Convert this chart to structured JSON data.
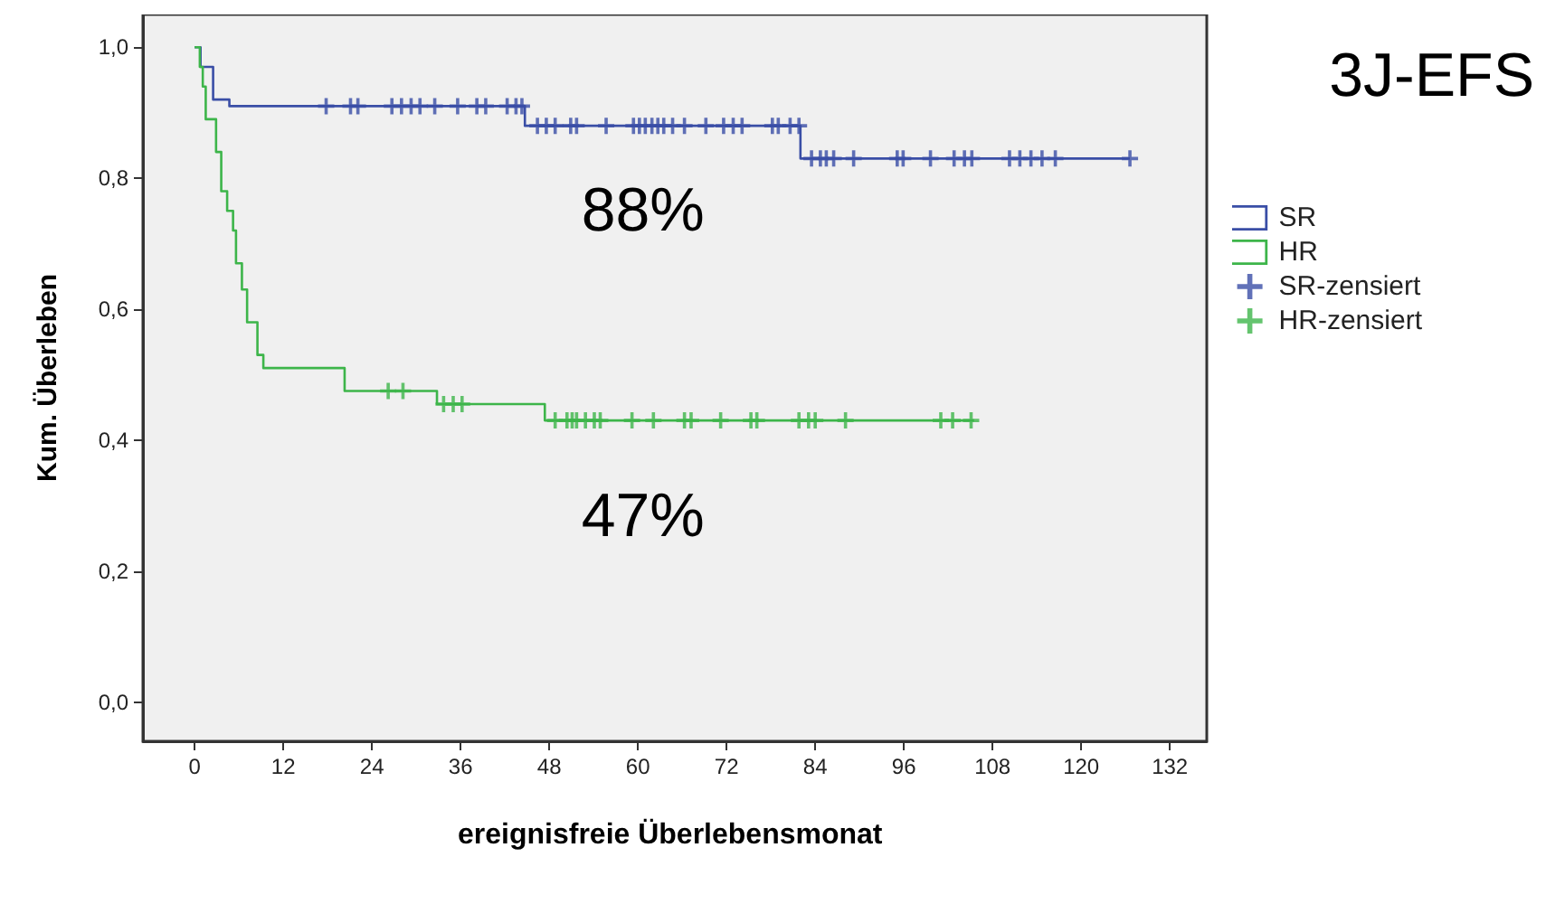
{
  "chart_data": {
    "type": "step",
    "title": "3J-EFS",
    "xlabel": "ereignisfreie Überlebensmonat",
    "ylabel": "Kum. Überleben",
    "xlim": [
      -7,
      137
    ],
    "xticks": [
      0,
      12,
      24,
      36,
      48,
      60,
      72,
      84,
      96,
      108,
      120,
      132
    ],
    "ylim": [
      -0.06,
      1.05
    ],
    "yticks": [
      {
        "value": 0,
        "label": "0,0"
      },
      {
        "value": 0.2,
        "label": "0,2"
      },
      {
        "value": 0.4,
        "label": "0,4"
      },
      {
        "value": 0.6,
        "label": "0,6"
      },
      {
        "value": 0.8,
        "label": "0,8"
      },
      {
        "value": 1,
        "label": "1,0"
      }
    ],
    "grid": false,
    "legend": "right",
    "annotations": [
      "88%",
      "47%"
    ],
    "series": [
      {
        "name": "SR",
        "type": "step",
        "color": "#3a4ea6",
        "x": [
          0,
          0.8,
          2.5,
          4.7,
          44.7,
          82,
          126.6
        ],
        "values": [
          1,
          0.97,
          0.92,
          0.91,
          0.88,
          0.83,
          0.83
        ]
      },
      {
        "name": "HR",
        "type": "step",
        "color": "#3db54a",
        "x": [
          0,
          0.7,
          1.1,
          1.5,
          2.9,
          3.6,
          4.4,
          5.2,
          5.6,
          6.4,
          7.1,
          8.5,
          9.3,
          20.3,
          32.8,
          47.4,
          105.5
        ],
        "values": [
          1,
          0.97,
          0.94,
          0.89,
          0.84,
          0.78,
          0.75,
          0.72,
          0.67,
          0.63,
          0.58,
          0.53,
          0.51,
          0.475,
          0.455,
          0.43,
          0.43
        ]
      },
      {
        "name": "SR-zensiert",
        "type": "scatter",
        "marker": "cross",
        "color": "#3a4ea6",
        "x": [
          17.8,
          21.1,
          22.1,
          26.7,
          28.0,
          29.3,
          30.5,
          32.5,
          35.6,
          38.2,
          39.4,
          42.3,
          43.5,
          44.3,
          46.4,
          47.6,
          48.8,
          50.9,
          51.7,
          55.7,
          59.4,
          60.2,
          61.0,
          61.9,
          62.7,
          63.5,
          64.7,
          66.3,
          69.2,
          71.6,
          72.9,
          74.1,
          78.2,
          79.0,
          80.6,
          81.8,
          83.5,
          84.7,
          85.5,
          86.5,
          89.2,
          95.1,
          95.9,
          99.6,
          102.8,
          104.2,
          105.2,
          110.3,
          111.7,
          113.2,
          114.7,
          116.5,
          126.6
        ],
        "values": [
          0.91,
          0.91,
          0.91,
          0.91,
          0.91,
          0.91,
          0.91,
          0.91,
          0.91,
          0.91,
          0.91,
          0.91,
          0.91,
          0.91,
          0.88,
          0.88,
          0.88,
          0.88,
          0.88,
          0.88,
          0.88,
          0.88,
          0.88,
          0.88,
          0.88,
          0.88,
          0.88,
          0.88,
          0.88,
          0.88,
          0.88,
          0.88,
          0.88,
          0.88,
          0.88,
          0.88,
          0.83,
          0.83,
          0.83,
          0.83,
          0.83,
          0.83,
          0.83,
          0.83,
          0.83,
          0.83,
          0.83,
          0.83,
          0.83,
          0.83,
          0.83,
          0.83,
          0.83
        ]
      },
      {
        "name": "HR-zensiert",
        "type": "scatter",
        "marker": "cross",
        "color": "#3db54a",
        "x": [
          26.2,
          28.2,
          33.7,
          35.0,
          36.2,
          48.8,
          50.4,
          51.1,
          51.7,
          52.9,
          54.1,
          54.9,
          59.2,
          62.1,
          66.3,
          67.2,
          71.2,
          75.3,
          76.1,
          81.8,
          83.1,
          84.0,
          88.1,
          101.0,
          102.6,
          105.1
        ],
        "values": [
          0.475,
          0.475,
          0.455,
          0.455,
          0.455,
          0.43,
          0.43,
          0.43,
          0.43,
          0.43,
          0.43,
          0.43,
          0.43,
          0.43,
          0.43,
          0.43,
          0.43,
          0.43,
          0.43,
          0.43,
          0.43,
          0.43,
          0.43,
          0.43,
          0.43,
          0.43
        ]
      }
    ]
  }
}
